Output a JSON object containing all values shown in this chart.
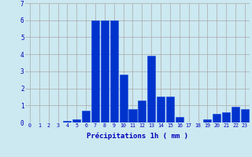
{
  "categories": [
    0,
    1,
    2,
    3,
    4,
    5,
    6,
    7,
    8,
    9,
    10,
    11,
    12,
    13,
    14,
    15,
    16,
    17,
    18,
    19,
    20,
    21,
    22,
    23
  ],
  "values": [
    0,
    0,
    0,
    0,
    0.1,
    0.2,
    0.7,
    6.0,
    6.0,
    6.0,
    2.8,
    0.8,
    1.3,
    3.9,
    1.5,
    1.5,
    0.3,
    0,
    0,
    0.2,
    0.5,
    0.6,
    0.9,
    0.8
  ],
  "bar_color": "#0033cc",
  "bar_edge_color": "#1144dd",
  "background_color": "#cce8f0",
  "grid_color": "#aaaaaa",
  "text_color": "#0000bb",
  "xlabel": "Précipitations 1h ( mm )",
  "ylim": [
    0,
    7
  ],
  "yticks": [
    0,
    1,
    2,
    3,
    4,
    5,
    6,
    7
  ],
  "xticks": [
    0,
    1,
    2,
    3,
    4,
    5,
    6,
    7,
    8,
    9,
    10,
    11,
    12,
    13,
    14,
    15,
    16,
    17,
    18,
    19,
    20,
    21,
    22,
    23
  ]
}
